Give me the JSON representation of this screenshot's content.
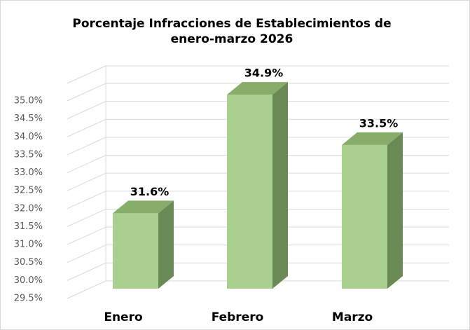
{
  "chart_data": {
    "type": "bar3d",
    "title": "Porcentaje Infracciones de Establecimientos de enero-marzo 2026",
    "categories": [
      "Enero",
      "Febrero",
      "Marzo"
    ],
    "values": [
      31.6,
      34.9,
      33.5
    ],
    "value_labels": [
      "31.6%",
      "34.9%",
      "33.5%"
    ],
    "color": "#a9d08e",
    "ylim": [
      29.5,
      35.0
    ],
    "yticks": [
      {
        "value": 29.5,
        "label": "29.5%"
      },
      {
        "value": 30.0,
        "label": "30.0%"
      },
      {
        "value": 30.5,
        "label": "30.5%"
      },
      {
        "value": 31.0,
        "label": "31.0%"
      },
      {
        "value": 31.5,
        "label": "31.5%"
      },
      {
        "value": 32.0,
        "label": "32.0%"
      },
      {
        "value": 32.5,
        "label": "32.5%"
      },
      {
        "value": 33.0,
        "label": "33.0%"
      },
      {
        "value": 33.5,
        "label": "33.5%"
      },
      {
        "value": 34.0,
        "label": "34.0%"
      },
      {
        "value": 34.5,
        "label": "34.5%"
      },
      {
        "value": 35.0,
        "label": "35.0%"
      }
    ],
    "grid": true
  }
}
